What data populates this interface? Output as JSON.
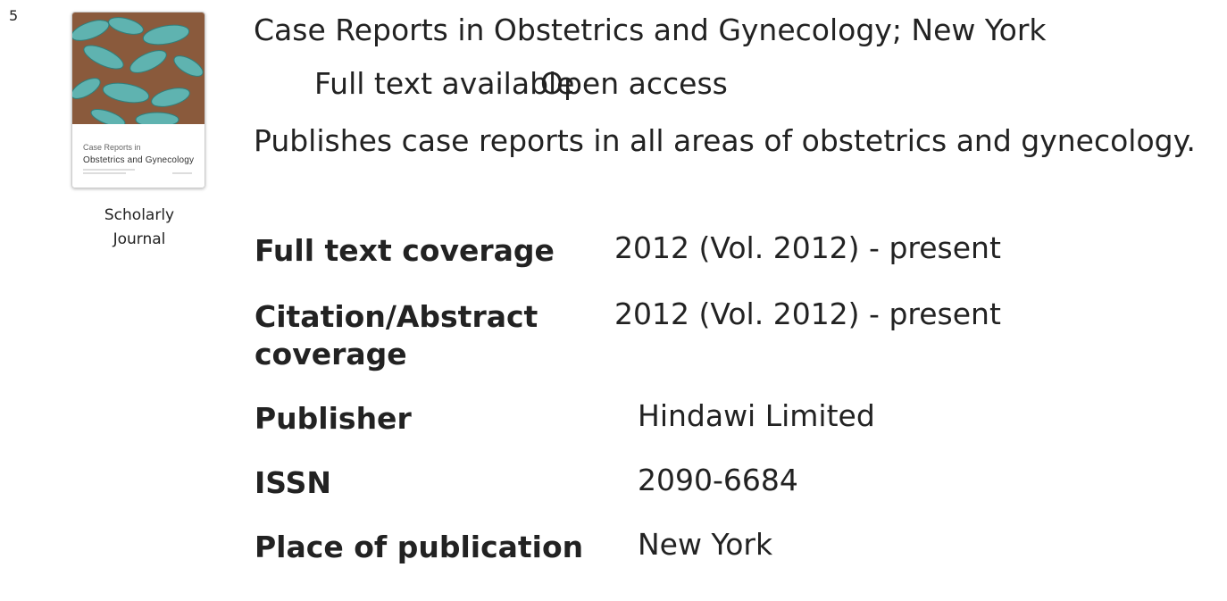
{
  "result": {
    "number": "5",
    "cover": {
      "line1": "Case Reports in",
      "line2": "Obstetrics and Gynecology"
    },
    "doc_type": "Scholarly Journal",
    "title": "Case Reports in Obstetrics and Gynecology; New York",
    "badges": [
      "Full text available",
      "Open access"
    ],
    "description": "Publishes case reports in all areas of obstetrics and gynecology.",
    "fields": [
      {
        "label": "Full text coverage",
        "value": "2012 (Vol. 2012) - present"
      },
      {
        "label": "Citation/Abstract coverage",
        "value": "2012 (Vol. 2012) - present"
      },
      {
        "label": "Publisher",
        "value": "Hindawi Limited"
      },
      {
        "label": "ISSN",
        "value": "2090-6684"
      },
      {
        "label": "Place of publication",
        "value": "New York"
      }
    ]
  }
}
